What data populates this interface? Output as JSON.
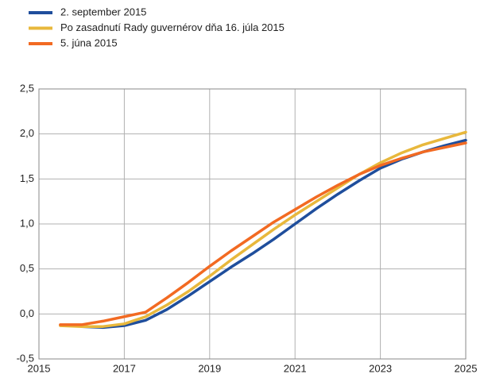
{
  "chart_data": {
    "type": "line",
    "x": [
      2015.5,
      2016,
      2016.5,
      2017,
      2017.5,
      2018,
      2018.5,
      2019,
      2019.5,
      2020,
      2020.5,
      2021,
      2021.5,
      2022,
      2022.5,
      2023,
      2023.5,
      2024,
      2024.5,
      2025
    ],
    "series": [
      {
        "name": "2. september 2015",
        "color": "#1f4e9c",
        "values": [
          null,
          -0.14,
          -0.15,
          -0.13,
          -0.07,
          0.05,
          0.2,
          0.36,
          0.52,
          0.67,
          0.83,
          1.0,
          1.17,
          1.33,
          1.48,
          1.62,
          1.72,
          1.8,
          1.87,
          1.93
        ]
      },
      {
        "name": "Po zasadnutí Rady guvernérov dňa 16. júla 2015",
        "color": "#e8b83c",
        "values": [
          -0.13,
          -0.14,
          -0.14,
          -0.11,
          -0.03,
          0.1,
          0.25,
          0.42,
          0.6,
          0.77,
          0.94,
          1.1,
          1.25,
          1.4,
          1.55,
          1.68,
          1.79,
          1.88,
          1.95,
          2.02
        ]
      },
      {
        "name": "5. júna 2015",
        "color": "#f26a22",
        "values": [
          -0.12,
          -0.12,
          -0.08,
          -0.03,
          0.02,
          0.18,
          0.35,
          0.53,
          0.7,
          0.86,
          1.02,
          1.16,
          1.3,
          1.43,
          1.55,
          1.65,
          1.73,
          1.8,
          1.85,
          1.9
        ]
      }
    ],
    "xlim": [
      2015,
      2025
    ],
    "xticks": [
      2015,
      2017,
      2019,
      2021,
      2023,
      2025
    ],
    "ylim": [
      -0.5,
      2.5
    ],
    "yticks": [
      {
        "value": -0.5,
        "label": "-0,5"
      },
      {
        "value": 0,
        "label": "0,0"
      },
      {
        "value": 0.5,
        "label": "0,5"
      },
      {
        "value": 1,
        "label": "1,0"
      },
      {
        "value": 1.5,
        "label": "1,5"
      },
      {
        "value": 2,
        "label": "2,0"
      },
      {
        "value": 2.5,
        "label": "2,5"
      }
    ],
    "grid": true,
    "legend": "top-left"
  }
}
